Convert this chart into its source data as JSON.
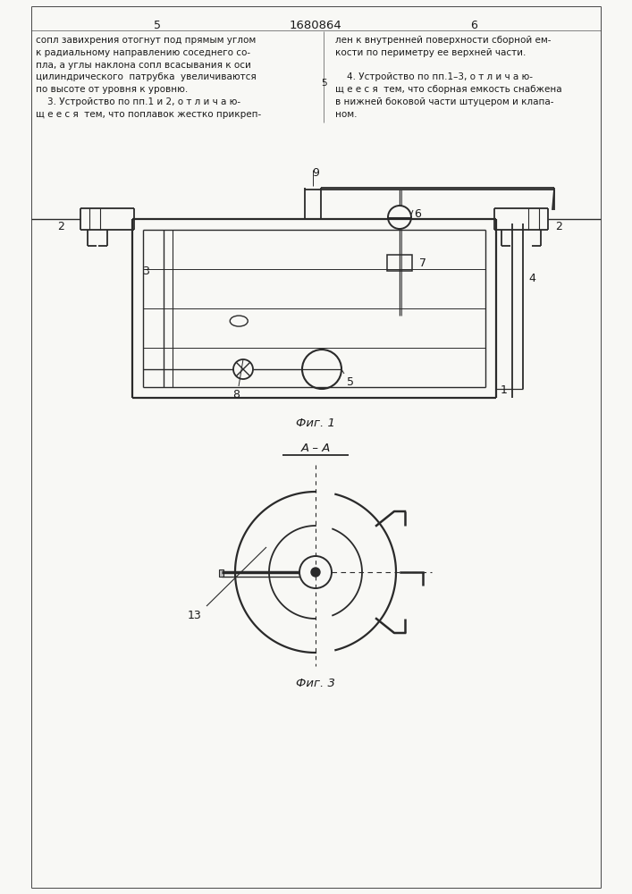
{
  "bg_color": "#f8f8f5",
  "line_color": "#2a2a2a",
  "text_color": "#1a1a1a",
  "page_num_left": "5",
  "page_num_center": "1680864",
  "page_num_right": "6",
  "text_left_col": [
    "сопл завихрения отогнут под прямым углом",
    "к радиальному направлению соседнего со-",
    "пла, а углы наклона сопл всасывания к оси",
    "цилиндрического  патрубка  увеличиваются",
    "по высоте от уровня к уровню.",
    "    3. Устройство по пп.1 и 2, о т л и ч а ю-",
    "щ е е с я  тем, что поплавок жестко прикреп-"
  ],
  "text_right_col": [
    "лен к внутренней поверхности сборной ем-",
    "кости по периметру ее верхней части.",
    "",
    "    4. Устройство по пп.1–3, о т л и ч а ю-",
    "щ е е с я  тем, что сборная емкость снабжена",
    "в нижней боковой части штуцером и клапа-",
    "ном."
  ],
  "fig1_caption": "Фиг. 1",
  "fig3_caption": "Фиг. 3",
  "aa_label": "А – А"
}
